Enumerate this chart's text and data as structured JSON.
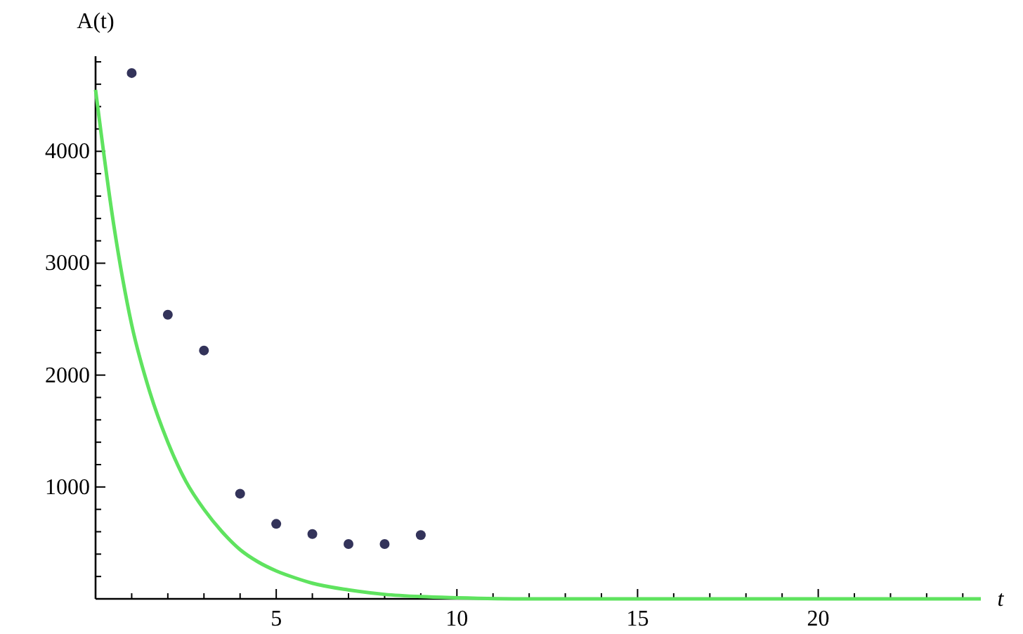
{
  "chart_data": {
    "type": "scatter",
    "xlabel": "t",
    "ylabel": "A(t)",
    "xlim": [
      0,
      24.5
    ],
    "ylim": [
      0,
      4850
    ],
    "xticks": [
      {
        "value": 1,
        "label": null
      },
      {
        "value": 2,
        "label": null
      },
      {
        "value": 3,
        "label": null
      },
      {
        "value": 4,
        "label": null
      },
      5,
      {
        "value": 6,
        "label": null
      },
      {
        "value": 7,
        "label": null
      },
      {
        "value": 8,
        "label": null
      },
      {
        "value": 9,
        "label": null
      },
      10,
      {
        "value": 11,
        "label": null
      },
      {
        "value": 12,
        "label": null
      },
      {
        "value": 13,
        "label": null
      },
      {
        "value": 14,
        "label": null
      },
      15,
      {
        "value": 16,
        "label": null
      },
      {
        "value": 17,
        "label": null
      },
      {
        "value": 18,
        "label": null
      },
      {
        "value": 19,
        "label": null
      },
      20,
      {
        "value": 21,
        "label": null
      },
      {
        "value": 22,
        "label": null
      },
      {
        "value": 23,
        "label": null
      },
      {
        "value": 24,
        "label": null
      }
    ],
    "yticks": [
      {
        "value": 200,
        "label": null
      },
      {
        "value": 400,
        "label": null
      },
      {
        "value": 600,
        "label": null
      },
      {
        "value": 800,
        "label": null
      },
      1000,
      {
        "value": 1200,
        "label": null
      },
      {
        "value": 1400,
        "label": null
      },
      {
        "value": 1600,
        "label": null
      },
      {
        "value": 1800,
        "label": null
      },
      2000,
      {
        "value": 2200,
        "label": null
      },
      {
        "value": 2400,
        "label": null
      },
      {
        "value": 2600,
        "label": null
      },
      {
        "value": 2800,
        "label": null
      },
      3000,
      {
        "value": 3200,
        "label": null
      },
      {
        "value": 3400,
        "label": null
      },
      {
        "value": 3600,
        "label": null
      },
      {
        "value": 3800,
        "label": null
      },
      4000,
      {
        "value": 4200,
        "label": null
      },
      {
        "value": 4400,
        "label": null
      },
      {
        "value": 4600,
        "label": null
      },
      {
        "value": 4800,
        "label": null
      }
    ],
    "marker": "circle",
    "grid": false,
    "series": [
      {
        "type": "line",
        "color": "#5fe35f",
        "marker": "none",
        "line_style": "solid",
        "x": [
          0,
          0.5,
          1,
          1.5,
          2,
          2.5,
          3,
          3.5,
          4,
          4.5,
          5,
          5.5,
          6,
          7,
          8,
          9,
          10,
          12,
          24.5
        ],
        "values": [
          4550,
          3350,
          2450,
          1850,
          1400,
          1050,
          800,
          600,
          440,
          330,
          250,
          190,
          140,
          80,
          40,
          20,
          10,
          0,
          0
        ]
      },
      {
        "color": "#33335a",
        "x": [
          1,
          2,
          3,
          4,
          5,
          6,
          7,
          8,
          9
        ],
        "values": [
          4700,
          2540,
          2220,
          940,
          670,
          580,
          490,
          490,
          570
        ]
      }
    ]
  }
}
